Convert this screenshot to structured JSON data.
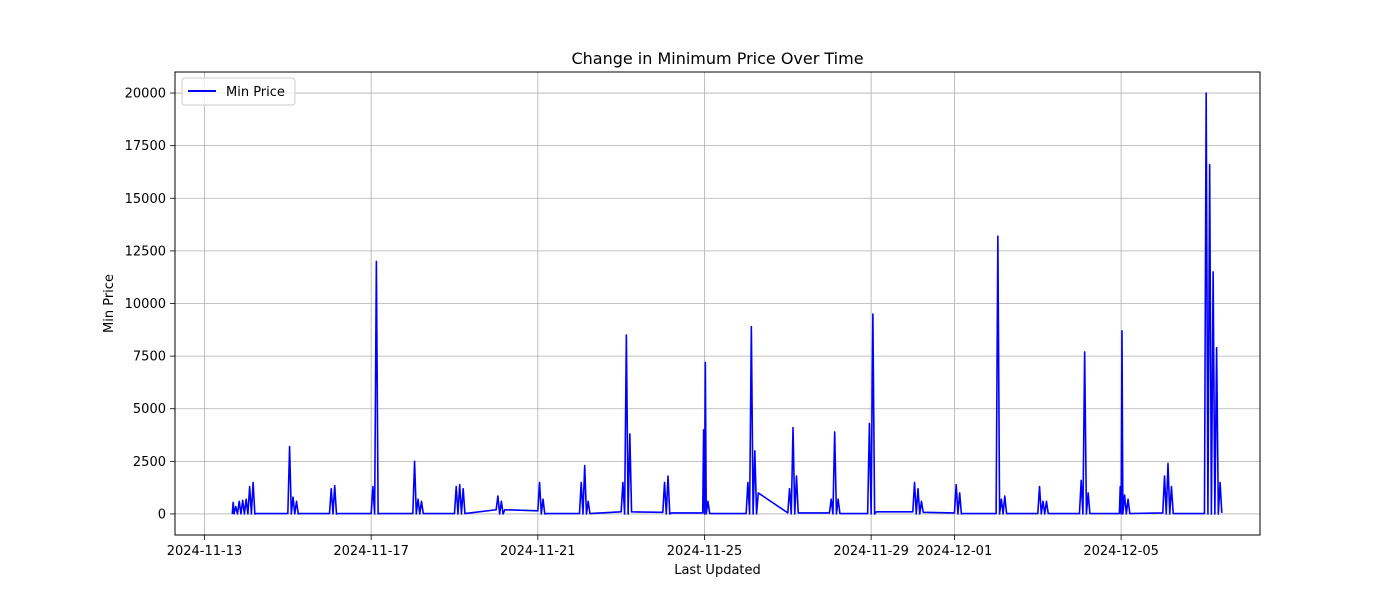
{
  "chart_data": {
    "type": "line",
    "title": "Change in Minimum Price Over Time",
    "xlabel": "Last Updated",
    "ylabel": "Min Price",
    "x_ticks": [
      "2024-11-13",
      "2024-11-17",
      "2024-11-21",
      "2024-11-25",
      "2024-11-29",
      "2024-12-01",
      "2024-12-05"
    ],
    "y_ticks": [
      "0",
      "2500",
      "5000",
      "7500",
      "10000",
      "12500",
      "15000",
      "17500",
      "20000"
    ],
    "xlim": [
      "2024-11-12T07:00",
      "2024-12-08T08:00"
    ],
    "ylim": [
      -1000,
      21000
    ],
    "grid": true,
    "legend_position": "upper left",
    "line_color": "#0000ff",
    "series": [
      {
        "name": "Min Price",
        "points": [
          [
            "2024-11-13T16:00",
            0
          ],
          [
            "2024-11-13T16:30",
            550
          ],
          [
            "2024-11-13T17:00",
            0
          ],
          [
            "2024-11-13T18:00",
            350
          ],
          [
            "2024-11-13T19:00",
            0
          ],
          [
            "2024-11-13T20:00",
            600
          ],
          [
            "2024-11-13T21:00",
            0
          ],
          [
            "2024-11-13T22:00",
            650
          ],
          [
            "2024-11-13T23:00",
            0
          ],
          [
            "2024-11-14T00:00",
            700
          ],
          [
            "2024-11-14T01:00",
            0
          ],
          [
            "2024-11-14T02:00",
            1300
          ],
          [
            "2024-11-14T03:00",
            0
          ],
          [
            "2024-11-14T04:00",
            1500
          ],
          [
            "2024-11-14T05:00",
            0
          ],
          [
            "2024-11-14T06:00",
            20
          ],
          [
            "2024-11-15T00:00",
            20
          ],
          [
            "2024-11-15T01:00",
            3200
          ],
          [
            "2024-11-15T02:00",
            0
          ],
          [
            "2024-11-15T03:00",
            800
          ],
          [
            "2024-11-15T04:00",
            0
          ],
          [
            "2024-11-15T05:00",
            600
          ],
          [
            "2024-11-15T06:00",
            0
          ],
          [
            "2024-11-15T07:00",
            20
          ],
          [
            "2024-11-16T00:00",
            20
          ],
          [
            "2024-11-16T01:00",
            1200
          ],
          [
            "2024-11-16T02:00",
            0
          ],
          [
            "2024-11-16T03:00",
            1350
          ],
          [
            "2024-11-16T04:00",
            0
          ],
          [
            "2024-11-16T05:00",
            20
          ],
          [
            "2024-11-17T00:00",
            20
          ],
          [
            "2024-11-17T01:00",
            1300
          ],
          [
            "2024-11-17T02:00",
            0
          ],
          [
            "2024-11-17T03:00",
            12000
          ],
          [
            "2024-11-17T04:00",
            0
          ],
          [
            "2024-11-17T05:00",
            20
          ],
          [
            "2024-11-18T00:00",
            20
          ],
          [
            "2024-11-18T01:00",
            2500
          ],
          [
            "2024-11-18T02:00",
            0
          ],
          [
            "2024-11-18T03:00",
            700
          ],
          [
            "2024-11-18T04:00",
            0
          ],
          [
            "2024-11-18T05:00",
            600
          ],
          [
            "2024-11-18T06:00",
            20
          ],
          [
            "2024-11-19T00:00",
            20
          ],
          [
            "2024-11-19T01:00",
            1300
          ],
          [
            "2024-11-19T02:00",
            0
          ],
          [
            "2024-11-19T03:00",
            1400
          ],
          [
            "2024-11-19T04:00",
            0
          ],
          [
            "2024-11-19T05:00",
            1200
          ],
          [
            "2024-11-19T06:00",
            20
          ],
          [
            "2024-11-20T00:00",
            200
          ],
          [
            "2024-11-20T01:00",
            850
          ],
          [
            "2024-11-20T02:00",
            0
          ],
          [
            "2024-11-20T03:00",
            600
          ],
          [
            "2024-11-20T04:00",
            0
          ],
          [
            "2024-11-20T05:00",
            200
          ],
          [
            "2024-11-21T00:00",
            150
          ],
          [
            "2024-11-21T01:00",
            1500
          ],
          [
            "2024-11-21T02:00",
            0
          ],
          [
            "2024-11-21T03:00",
            700
          ],
          [
            "2024-11-21T04:00",
            0
          ],
          [
            "2024-11-21T05:00",
            20
          ],
          [
            "2024-11-22T00:00",
            20
          ],
          [
            "2024-11-22T01:00",
            1500
          ],
          [
            "2024-11-22T02:00",
            0
          ],
          [
            "2024-11-22T03:00",
            2300
          ],
          [
            "2024-11-22T04:00",
            0
          ],
          [
            "2024-11-22T05:00",
            600
          ],
          [
            "2024-11-22T06:00",
            20
          ],
          [
            "2024-11-23T00:00",
            100
          ],
          [
            "2024-11-23T01:00",
            1500
          ],
          [
            "2024-11-23T02:00",
            0
          ],
          [
            "2024-11-23T03:00",
            8500
          ],
          [
            "2024-11-23T04:00",
            0
          ],
          [
            "2024-11-23T05:00",
            3800
          ],
          [
            "2024-11-23T06:00",
            100
          ],
          [
            "2024-11-24T00:00",
            80
          ],
          [
            "2024-11-24T01:00",
            1500
          ],
          [
            "2024-11-24T02:00",
            0
          ],
          [
            "2024-11-24T03:00",
            1800
          ],
          [
            "2024-11-24T04:00",
            0
          ],
          [
            "2024-11-24T05:00",
            50
          ],
          [
            "2024-11-24T23:00",
            50
          ],
          [
            "2024-11-24T23:30",
            4000
          ],
          [
            "2024-11-25T00:00",
            0
          ],
          [
            "2024-11-25T00:30",
            7200
          ],
          [
            "2024-11-25T01:00",
            0
          ],
          [
            "2024-11-25T02:00",
            600
          ],
          [
            "2024-11-25T03:00",
            20
          ],
          [
            "2024-11-26T00:00",
            20
          ],
          [
            "2024-11-26T01:00",
            1500
          ],
          [
            "2024-11-26T02:00",
            0
          ],
          [
            "2024-11-26T03:00",
            8900
          ],
          [
            "2024-11-26T04:00",
            0
          ],
          [
            "2024-11-26T05:00",
            3000
          ],
          [
            "2024-11-26T06:00",
            0
          ],
          [
            "2024-11-26T07:00",
            1000
          ],
          [
            "2024-11-27T00:00",
            50
          ],
          [
            "2024-11-27T01:00",
            1200
          ],
          [
            "2024-11-27T02:00",
            0
          ],
          [
            "2024-11-27T03:00",
            4100
          ],
          [
            "2024-11-27T04:00",
            0
          ],
          [
            "2024-11-27T05:00",
            1800
          ],
          [
            "2024-11-27T06:00",
            50
          ],
          [
            "2024-11-28T00:00",
            50
          ],
          [
            "2024-11-28T01:00",
            700
          ],
          [
            "2024-11-28T02:00",
            0
          ],
          [
            "2024-11-28T03:00",
            3900
          ],
          [
            "2024-11-28T04:00",
            0
          ],
          [
            "2024-11-28T05:00",
            700
          ],
          [
            "2024-11-28T06:00",
            20
          ],
          [
            "2024-11-28T22:00",
            20
          ],
          [
            "2024-11-28T23:00",
            4300
          ],
          [
            "2024-11-29T00:00",
            0
          ],
          [
            "2024-11-29T01:00",
            9500
          ],
          [
            "2024-11-29T02:00",
            0
          ],
          [
            "2024-11-29T03:00",
            100
          ],
          [
            "2024-11-30T00:00",
            100
          ],
          [
            "2024-11-30T01:00",
            1500
          ],
          [
            "2024-11-30T02:00",
            0
          ],
          [
            "2024-11-30T03:00",
            1200
          ],
          [
            "2024-11-30T04:00",
            0
          ],
          [
            "2024-11-30T05:00",
            600
          ],
          [
            "2024-11-30T06:00",
            80
          ],
          [
            "2024-12-01T00:00",
            50
          ],
          [
            "2024-12-01T01:00",
            1400
          ],
          [
            "2024-12-01T02:00",
            0
          ],
          [
            "2024-12-01T03:00",
            1000
          ],
          [
            "2024-12-01T04:00",
            0
          ],
          [
            "2024-12-01T05:00",
            20
          ],
          [
            "2024-12-02T00:00",
            20
          ],
          [
            "2024-12-02T01:00",
            13200
          ],
          [
            "2024-12-02T02:00",
            0
          ],
          [
            "2024-12-02T03:00",
            700
          ],
          [
            "2024-12-02T04:00",
            0
          ],
          [
            "2024-12-02T05:00",
            850
          ],
          [
            "2024-12-02T06:00",
            20
          ],
          [
            "2024-12-03T00:00",
            20
          ],
          [
            "2024-12-03T01:00",
            1300
          ],
          [
            "2024-12-03T02:00",
            0
          ],
          [
            "2024-12-03T03:00",
            600
          ],
          [
            "2024-12-03T04:00",
            0
          ],
          [
            "2024-12-03T05:00",
            600
          ],
          [
            "2024-12-03T06:00",
            20
          ],
          [
            "2024-12-04T00:00",
            20
          ],
          [
            "2024-12-04T01:00",
            1600
          ],
          [
            "2024-12-04T02:00",
            0
          ],
          [
            "2024-12-04T03:00",
            7700
          ],
          [
            "2024-12-04T04:00",
            0
          ],
          [
            "2024-12-04T05:00",
            1000
          ],
          [
            "2024-12-04T06:00",
            20
          ],
          [
            "2024-12-04T23:00",
            20
          ],
          [
            "2024-12-04T23:30",
            1300
          ],
          [
            "2024-12-05T00:00",
            0
          ],
          [
            "2024-12-05T00:30",
            8700
          ],
          [
            "2024-12-05T01:00",
            0
          ],
          [
            "2024-12-05T02:00",
            900
          ],
          [
            "2024-12-05T03:00",
            0
          ],
          [
            "2024-12-05T04:00",
            700
          ],
          [
            "2024-12-05T05:00",
            20
          ],
          [
            "2024-12-06T00:00",
            50
          ],
          [
            "2024-12-06T01:00",
            1800
          ],
          [
            "2024-12-06T02:00",
            0
          ],
          [
            "2024-12-06T03:00",
            2400
          ],
          [
            "2024-12-06T04:00",
            0
          ],
          [
            "2024-12-06T05:00",
            1300
          ],
          [
            "2024-12-06T06:00",
            20
          ],
          [
            "2024-12-07T00:00",
            20
          ],
          [
            "2024-12-07T01:00",
            20000
          ],
          [
            "2024-12-07T02:00",
            0
          ],
          [
            "2024-12-07T03:00",
            16600
          ],
          [
            "2024-12-07T04:00",
            0
          ],
          [
            "2024-12-07T05:00",
            11500
          ],
          [
            "2024-12-07T06:00",
            0
          ],
          [
            "2024-12-07T07:00",
            7900
          ],
          [
            "2024-12-07T08:00",
            0
          ],
          [
            "2024-12-07T09:00",
            1500
          ],
          [
            "2024-12-07T10:00",
            50
          ]
        ]
      }
    ]
  }
}
